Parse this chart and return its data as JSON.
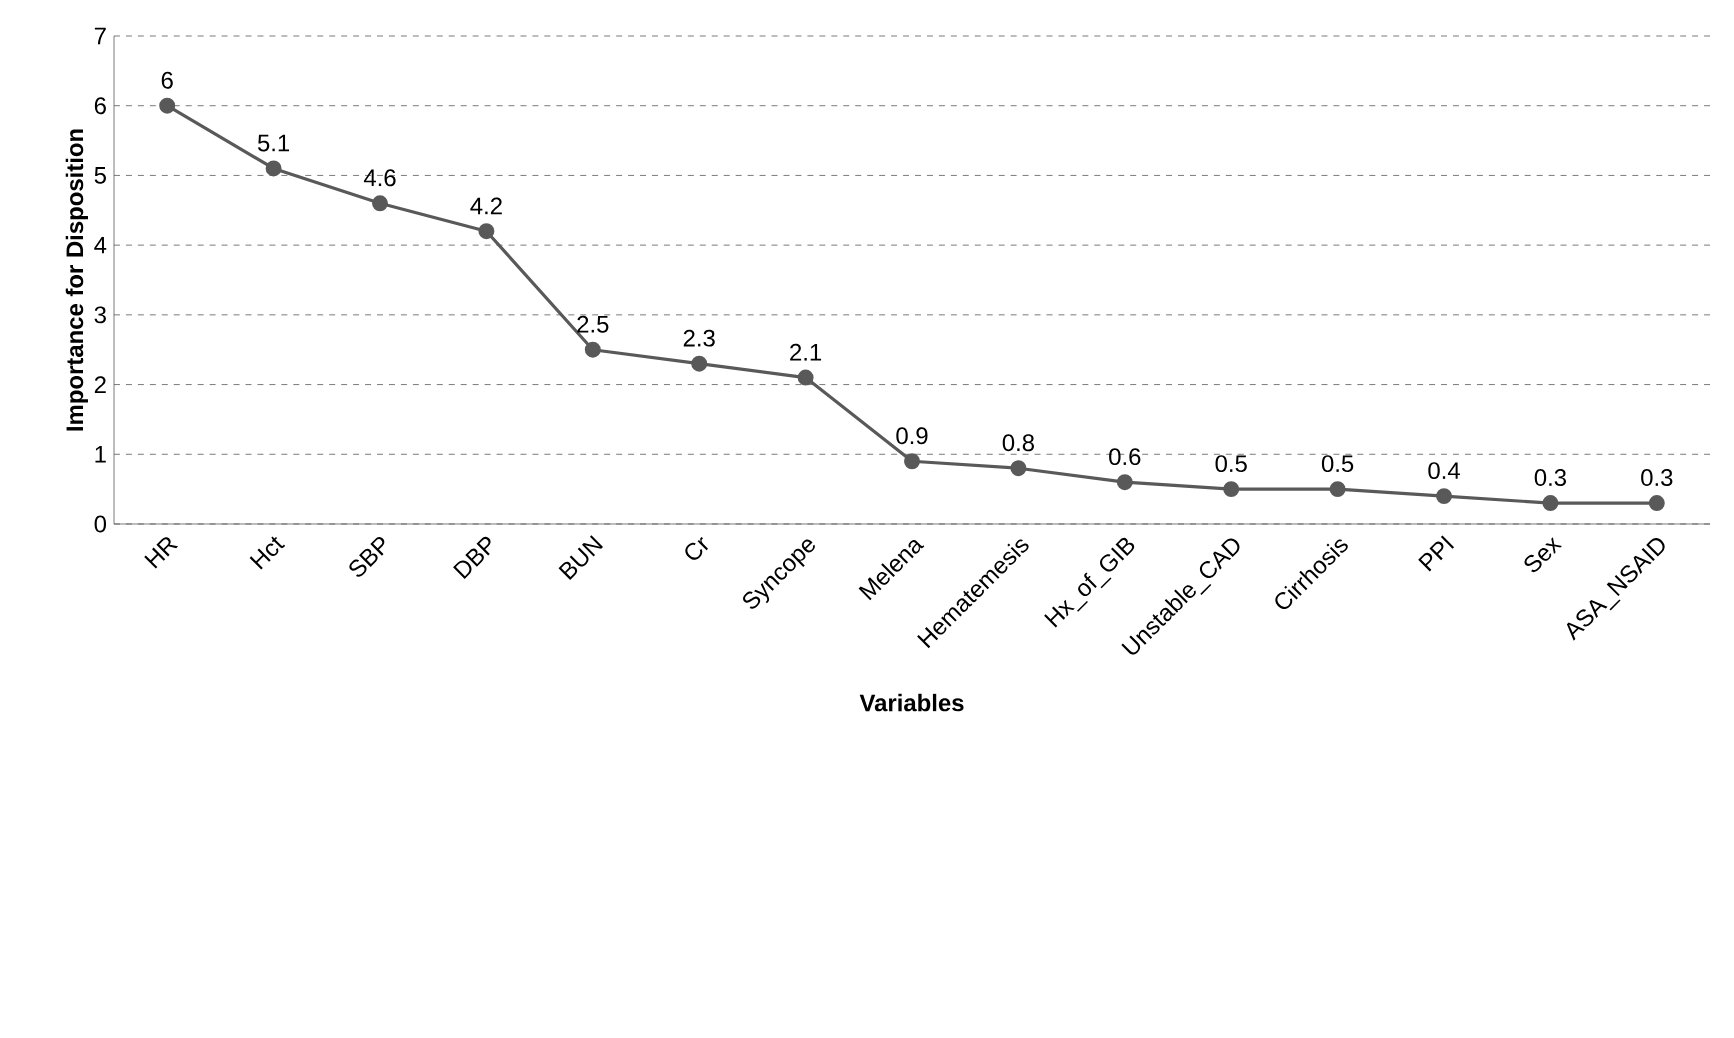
{
  "chart_data": {
    "type": "line",
    "xlabel": "Variables",
    "ylabel": "Importance for Disposition",
    "categories": [
      "HR",
      "Hct",
      "SBP",
      "DBP",
      "BUN",
      "Cr",
      "Syncope",
      "Melena",
      "Hematemesis",
      "Hx_of_GIB",
      "Unstable_CAD",
      "Cirrhosis",
      "PPI",
      "Sex",
      "ASA_NSAID"
    ],
    "values": [
      6,
      5.1,
      4.6,
      4.2,
      2.5,
      2.3,
      2.1,
      0.9,
      0.8,
      0.6,
      0.5,
      0.5,
      0.4,
      0.3,
      0.3
    ],
    "color": "#595959",
    "marker": "circle",
    "line_style": "solid",
    "grid": "y",
    "data_labels": true,
    "ylim": [
      0,
      7
    ],
    "yticks": [
      0,
      1,
      2,
      3,
      4,
      5,
      6,
      7
    ]
  }
}
